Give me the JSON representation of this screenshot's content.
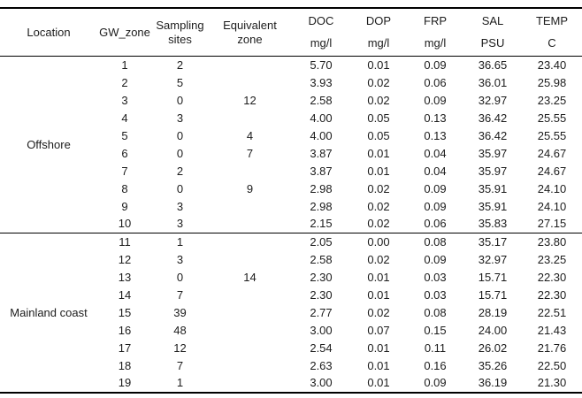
{
  "table": {
    "columns": [
      {
        "id": "location",
        "line1": "Location",
        "line2": "",
        "style": "single"
      },
      {
        "id": "gw_zone",
        "line1": "GW_zone",
        "line2": "",
        "style": "single"
      },
      {
        "id": "sampling_sites",
        "line1": "Sampling",
        "line2": "sites",
        "style": "wrap"
      },
      {
        "id": "equivalent_zone",
        "line1": "Equivalent",
        "line2": "zone",
        "style": "wrap"
      },
      {
        "id": "doc",
        "line1": "DOC",
        "line2": "mg/l",
        "style": "unit"
      },
      {
        "id": "dop",
        "line1": "DOP",
        "line2": "mg/l",
        "style": "unit"
      },
      {
        "id": "frp",
        "line1": "FRP",
        "line2": "mg/l",
        "style": "unit"
      },
      {
        "id": "sal",
        "line1": "SAL",
        "line2": "PSU",
        "style": "unit"
      },
      {
        "id": "temp",
        "line1": "TEMP",
        "line2": "C",
        "style": "unit"
      }
    ],
    "groups": [
      {
        "location": "Offshore",
        "rows": [
          [
            "1",
            "2",
            "",
            "5.70",
            "0.01",
            "0.09",
            "36.65",
            "23.40"
          ],
          [
            "2",
            "5",
            "",
            "3.93",
            "0.02",
            "0.06",
            "36.01",
            "25.98"
          ],
          [
            "3",
            "0",
            "12",
            "2.58",
            "0.02",
            "0.09",
            "32.97",
            "23.25"
          ],
          [
            "4",
            "3",
            "",
            "4.00",
            "0.05",
            "0.13",
            "36.42",
            "25.55"
          ],
          [
            "5",
            "0",
            "4",
            "4.00",
            "0.05",
            "0.13",
            "36.42",
            "25.55"
          ],
          [
            "6",
            "0",
            "7",
            "3.87",
            "0.01",
            "0.04",
            "35.97",
            "24.67"
          ],
          [
            "7",
            "2",
            "",
            "3.87",
            "0.01",
            "0.04",
            "35.97",
            "24.67"
          ],
          [
            "8",
            "0",
            "9",
            "2.98",
            "0.02",
            "0.09",
            "35.91",
            "24.10"
          ],
          [
            "9",
            "3",
            "",
            "2.98",
            "0.02",
            "0.09",
            "35.91",
            "24.10"
          ],
          [
            "10",
            "3",
            "",
            "2.15",
            "0.02",
            "0.06",
            "35.83",
            "27.15"
          ]
        ]
      },
      {
        "location": "Mainland coast",
        "rows": [
          [
            "11",
            "1",
            "",
            "2.05",
            "0.00",
            "0.08",
            "35.17",
            "23.80"
          ],
          [
            "12",
            "3",
            "",
            "2.58",
            "0.02",
            "0.09",
            "32.97",
            "23.25"
          ],
          [
            "13",
            "0",
            "14",
            "2.30",
            "0.01",
            "0.03",
            "15.71",
            "22.30"
          ],
          [
            "14",
            "7",
            "",
            "2.30",
            "0.01",
            "0.03",
            "15.71",
            "22.30"
          ],
          [
            "15",
            "39",
            "",
            "2.77",
            "0.02",
            "0.08",
            "28.19",
            "22.51"
          ],
          [
            "16",
            "48",
            "",
            "3.00",
            "0.07",
            "0.15",
            "24.00",
            "21.43"
          ],
          [
            "17",
            "12",
            "",
            "2.54",
            "0.01",
            "0.11",
            "26.02",
            "21.76"
          ],
          [
            "18",
            "7",
            "",
            "2.63",
            "0.01",
            "0.16",
            "35.26",
            "22.50"
          ],
          [
            "19",
            "1",
            "",
            "3.00",
            "0.01",
            "0.09",
            "36.19",
            "21.30"
          ]
        ]
      }
    ]
  }
}
